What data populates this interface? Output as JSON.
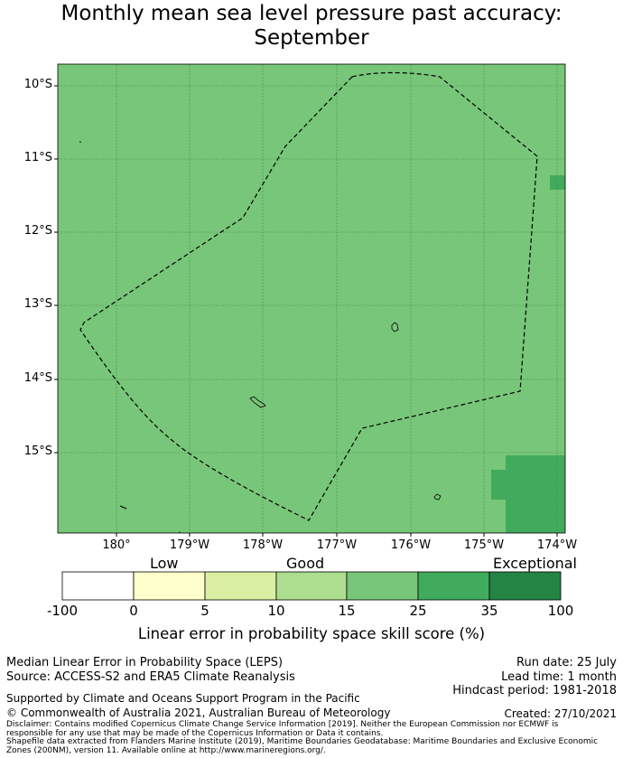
{
  "title": {
    "line1": "Monthly mean sea level pressure past accuracy:",
    "line2": "September"
  },
  "map": {
    "background_color": "#78c679",
    "grid_color": "#4a8a4c",
    "lat_labels": [
      "10°S",
      "11°S",
      "12°S",
      "13°S",
      "14°S",
      "15°S"
    ],
    "lon_labels": [
      "180°",
      "179°W",
      "178°W",
      "177°W",
      "176°W",
      "175°W",
      "174°W"
    ],
    "boundary": "dashed maritime boundary"
  },
  "colorbar": {
    "category_labels": [
      "Low",
      "Good",
      "Exceptional"
    ],
    "tick_labels": [
      "-100",
      "0",
      "5",
      "10",
      "15",
      "25",
      "35",
      "100"
    ],
    "colors": [
      "#ffffff",
      "#ffffcc",
      "#d9f0a3",
      "#addd8e",
      "#78c679",
      "#41ab5d",
      "#238443"
    ],
    "title": "Linear error in probability space skill score (%)"
  },
  "footer": {
    "line1": "Median Linear Error in Probability Space (LEPS)",
    "line2": "Source: ACCESS-S2 and ERA5 Climate Reanalysis",
    "run_date": "Run date: 25 July",
    "lead_time": "Lead time: 1 month",
    "hindcast": "Hindcast period: 1981-2018",
    "supported": "Supported by Climate and Oceans Support Program in the Pacific",
    "copyright": "© Commonwealth of Australia 2021, Australian Bureau of Meteorology",
    "created": "Created: 27/10/2021",
    "disclaimer1": "Disclaimer: Contains modified Copernicus Climate Change Service Information [2019]. Neither the European Commission nor ECMWF is",
    "disclaimer2": "responsible for any use that may be made of the Copernicus Information or Data it contains.",
    "disclaimer3": "Shapefile data extracted from Flanders Marine Institute (2019), Maritime Boundaries Geodatabase: Maritime Boundaries and Exclusive Economic",
    "disclaimer4": "Zones (200NM), version 11. Available online at http://www.marineregions.org/."
  }
}
